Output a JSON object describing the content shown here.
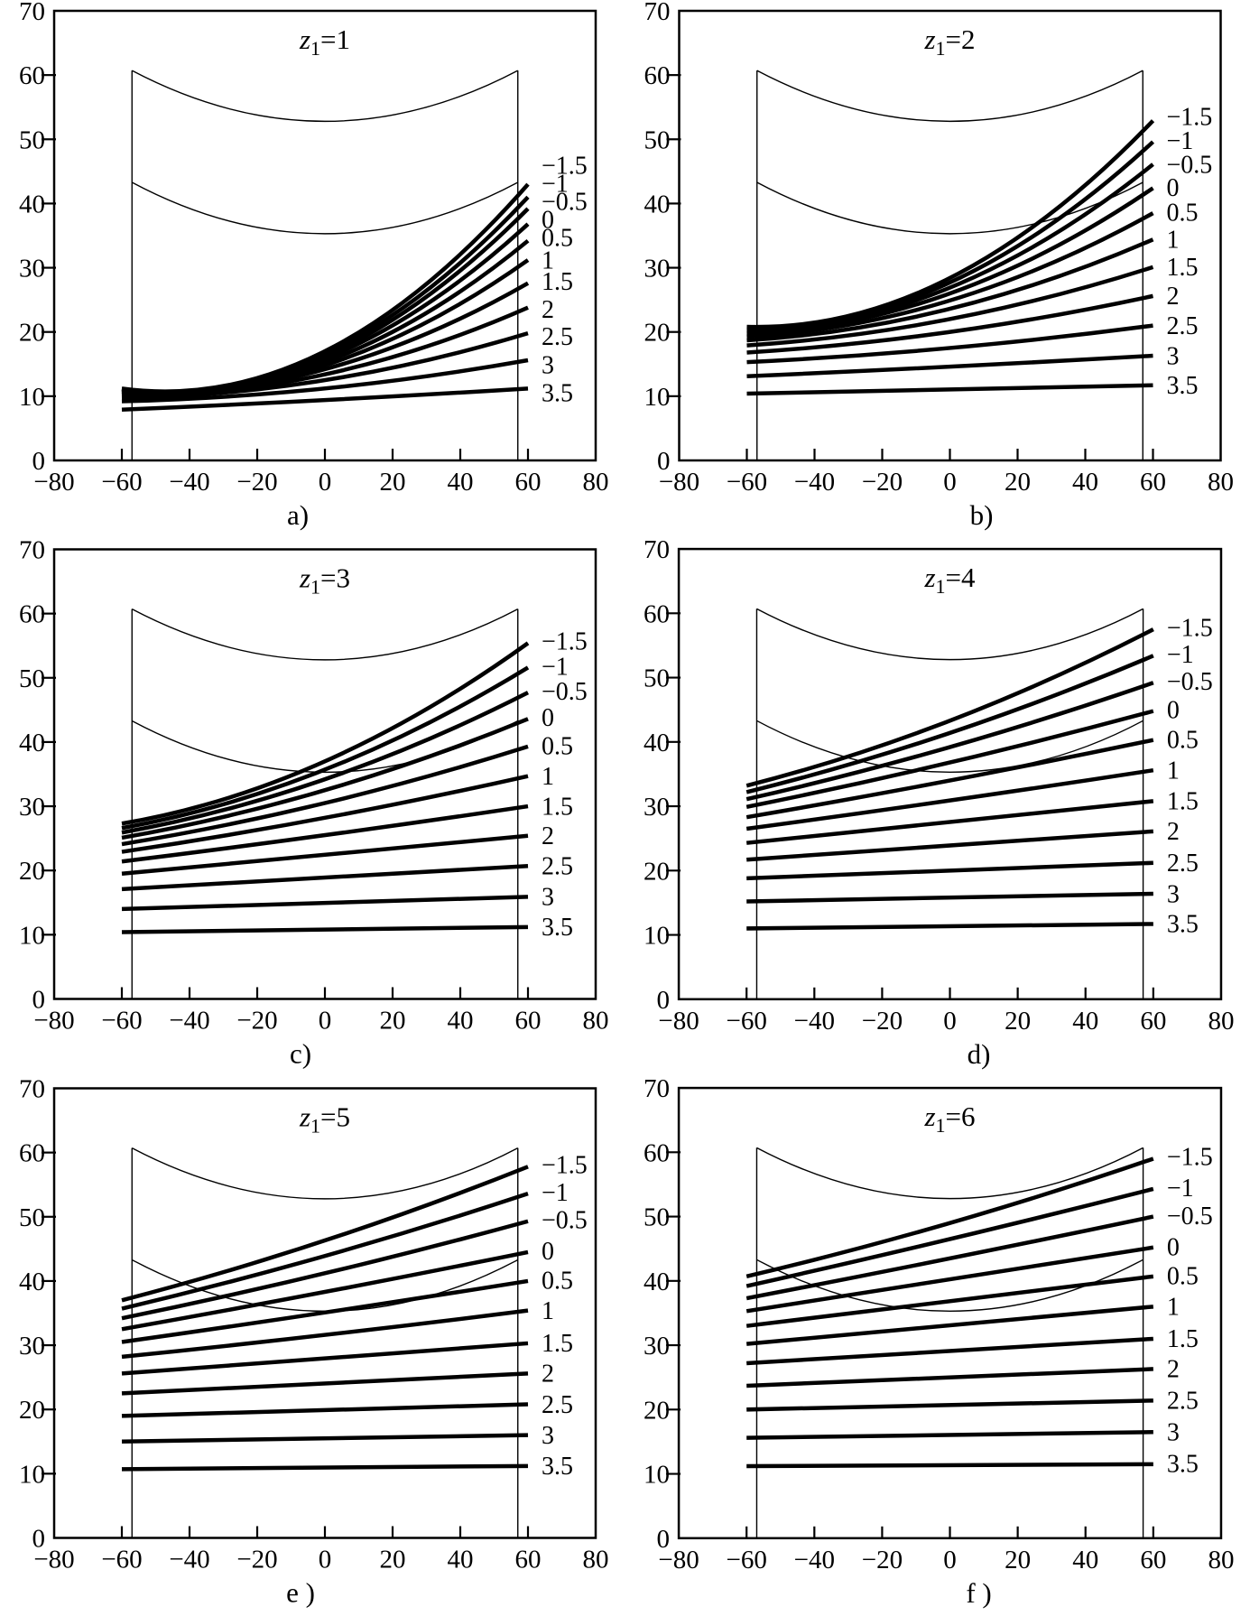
{
  "figure": {
    "background_color": "#ffffff",
    "ink_color": "#000000",
    "x_axis": {
      "min": -80,
      "max": 80,
      "tick_step": 20,
      "tick_values": [
        -80,
        -60,
        -40,
        -20,
        0,
        20,
        40,
        60,
        80
      ],
      "tick_labels": [
        "−80",
        "−60",
        "−40",
        "−20",
        "0",
        "20",
        "40",
        "60",
        "80"
      ]
    },
    "y_axis": {
      "min": 0,
      "max": 70,
      "tick_step": 10,
      "tick_values": [
        0,
        10,
        20,
        30,
        40,
        50,
        60,
        70
      ],
      "tick_labels": [
        "0",
        "10",
        "20",
        "30",
        "40",
        "50",
        "60",
        "70"
      ]
    },
    "series_x_points": [
      -60,
      0,
      60
    ],
    "envelope": {
      "x_start": -57,
      "x_end": 57,
      "upper": {
        "end_value": 60.7,
        "mid_value": 52.8
      },
      "lower": {
        "end_value": 43.3,
        "mid_value": 35.3
      },
      "vertical_lines_x": [
        -57,
        57
      ]
    }
  },
  "chart_data": [
    {
      "type": "line",
      "panel_letter": "a)",
      "title": {
        "symbol": "z",
        "subscript": "1",
        "equals": "=",
        "value": "1"
      },
      "xlim": [
        -80,
        80
      ],
      "ylim": [
        0,
        70
      ],
      "grid": false,
      "legend_position": "right-inside",
      "series": [
        {
          "label": "−1.5",
          "start": 11.2,
          "mid": 17.0,
          "end": 43.0,
          "label_y": 46.0
        },
        {
          "label": "−1",
          "start": 11.1,
          "mid": 16.6,
          "end": 41.0,
          "label_y": 43.2
        },
        {
          "label": "−0.5",
          "start": 11.0,
          "mid": 16.2,
          "end": 39.2,
          "label_y": 40.4
        },
        {
          "label": "0",
          "start": 10.8,
          "mid": 15.8,
          "end": 36.8,
          "label_y": 37.6
        },
        {
          "label": "0.5",
          "start": 10.7,
          "mid": 15.3,
          "end": 34.2,
          "label_y": 34.8
        },
        {
          "label": "1",
          "start": 10.5,
          "mid": 14.8,
          "end": 31.2,
          "label_y": 31.3
        },
        {
          "label": "1.5",
          "start": 10.3,
          "mid": 14.2,
          "end": 27.6,
          "label_y": 28.0
        },
        {
          "label": "2",
          "start": 10.0,
          "mid": 13.4,
          "end": 23.8,
          "label_y": 23.6
        },
        {
          "label": "2.5",
          "start": 9.7,
          "mid": 12.5,
          "end": 19.8,
          "label_y": 19.4
        },
        {
          "label": "3",
          "start": 9.2,
          "mid": 11.2,
          "end": 15.6,
          "label_y": 15.0
        },
        {
          "label": "3.5",
          "start": 7.9,
          "mid": 9.4,
          "end": 11.2,
          "label_y": 10.6
        }
      ]
    },
    {
      "type": "line",
      "panel_letter": "b)",
      "title": {
        "symbol": "z",
        "subscript": "1",
        "equals": "=",
        "value": "2"
      },
      "xlim": [
        -80,
        80
      ],
      "ylim": [
        0,
        70
      ],
      "grid": false,
      "legend_position": "right-inside",
      "series": [
        {
          "label": "−1.5",
          "start": 20.8,
          "mid": 28.4,
          "end": 52.9,
          "label_y": 53.6
        },
        {
          "label": "−1",
          "start": 20.5,
          "mid": 27.7,
          "end": 49.6,
          "label_y": 49.9
        },
        {
          "label": "−0.5",
          "start": 20.2,
          "mid": 26.9,
          "end": 46.1,
          "label_y": 46.2
        },
        {
          "label": "0",
          "start": 19.8,
          "mid": 26.0,
          "end": 42.4,
          "label_y": 42.6
        },
        {
          "label": "0.5",
          "start": 19.3,
          "mid": 24.9,
          "end": 38.5,
          "label_y": 38.7
        },
        {
          "label": "1",
          "start": 18.7,
          "mid": 23.6,
          "end": 34.4,
          "label_y": 34.5
        },
        {
          "label": "1.5",
          "start": 17.9,
          "mid": 22.0,
          "end": 30.1,
          "label_y": 30.2
        },
        {
          "label": "2",
          "start": 16.8,
          "mid": 20.0,
          "end": 25.6,
          "label_y": 25.7
        },
        {
          "label": "2.5",
          "start": 15.3,
          "mid": 17.5,
          "end": 21.0,
          "label_y": 21.1
        },
        {
          "label": "3",
          "start": 13.1,
          "mid": 14.6,
          "end": 16.3,
          "label_y": 16.4
        },
        {
          "label": "3.5",
          "start": 10.4,
          "mid": 11.0,
          "end": 11.7,
          "label_y": 11.8
        }
      ]
    },
    {
      "type": "line",
      "panel_letter": "c)",
      "title": {
        "symbol": "z",
        "subscript": "1",
        "equals": "=",
        "value": "3"
      },
      "xlim": [
        -80,
        80
      ],
      "ylim": [
        0,
        70
      ],
      "grid": false,
      "legend_position": "right-inside",
      "series": [
        {
          "label": "−1.5",
          "start": 27.3,
          "mid": 37.0,
          "end": 55.4,
          "label_y": 55.8
        },
        {
          "label": "−1",
          "start": 26.6,
          "mid": 35.7,
          "end": 51.6,
          "label_y": 51.9
        },
        {
          "label": "−0.5",
          "start": 25.9,
          "mid": 34.2,
          "end": 47.7,
          "label_y": 48.0
        },
        {
          "label": "0",
          "start": 25.1,
          "mid": 32.5,
          "end": 43.6,
          "label_y": 43.9
        },
        {
          "label": "0.5",
          "start": 24.1,
          "mid": 30.5,
          "end": 39.3,
          "label_y": 39.5
        },
        {
          "label": "1",
          "start": 22.9,
          "mid": 28.2,
          "end": 34.7,
          "label_y": 34.8
        },
        {
          "label": "1.5",
          "start": 21.4,
          "mid": 25.5,
          "end": 30.0,
          "label_y": 30.1
        },
        {
          "label": "2",
          "start": 19.5,
          "mid": 22.4,
          "end": 25.4,
          "label_y": 25.5
        },
        {
          "label": "2.5",
          "start": 17.1,
          "mid": 18.9,
          "end": 20.7,
          "label_y": 20.8
        },
        {
          "label": "3",
          "start": 14.0,
          "mid": 15.0,
          "end": 15.9,
          "label_y": 16.0
        },
        {
          "label": "3.5",
          "start": 10.4,
          "mid": 10.8,
          "end": 11.2,
          "label_y": 11.3
        }
      ]
    },
    {
      "type": "line",
      "panel_letter": "d)",
      "title": {
        "symbol": "z",
        "subscript": "1",
        "equals": "=",
        "value": "4"
      },
      "xlim": [
        -80,
        80
      ],
      "ylim": [
        0,
        70
      ],
      "grid": false,
      "legend_position": "right-inside",
      "series": [
        {
          "label": "−1.5",
          "start": 33.2,
          "mid": 43.3,
          "end": 57.5,
          "label_y": 57.9
        },
        {
          "label": "−1",
          "start": 32.2,
          "mid": 41.4,
          "end": 53.4,
          "label_y": 53.7
        },
        {
          "label": "−0.5",
          "start": 31.1,
          "mid": 39.2,
          "end": 49.2,
          "label_y": 49.5
        },
        {
          "label": "0",
          "start": 29.9,
          "mid": 36.8,
          "end": 44.8,
          "label_y": 45.1
        },
        {
          "label": "0.5",
          "start": 28.3,
          "mid": 34.0,
          "end": 40.3,
          "label_y": 40.5
        },
        {
          "label": "1",
          "start": 26.5,
          "mid": 30.9,
          "end": 35.6,
          "label_y": 35.7
        },
        {
          "label": "1.5",
          "start": 24.3,
          "mid": 27.5,
          "end": 30.8,
          "label_y": 30.9
        },
        {
          "label": "2",
          "start": 21.7,
          "mid": 23.9,
          "end": 26.1,
          "label_y": 26.2
        },
        {
          "label": "2.5",
          "start": 18.8,
          "mid": 20.0,
          "end": 21.2,
          "label_y": 21.3
        },
        {
          "label": "3",
          "start": 15.2,
          "mid": 15.8,
          "end": 16.4,
          "label_y": 16.5
        },
        {
          "label": "3.5",
          "start": 11.0,
          "mid": 11.3,
          "end": 11.7,
          "label_y": 11.8
        }
      ]
    },
    {
      "type": "line",
      "panel_letter": "e )",
      "title": {
        "symbol": "z",
        "subscript": "1",
        "equals": "=",
        "value": "5"
      },
      "xlim": [
        -80,
        80
      ],
      "ylim": [
        0,
        70
      ],
      "grid": false,
      "legend_position": "right-inside",
      "series": [
        {
          "label": "−1.5",
          "start": 37.0,
          "mid": 46.3,
          "end": 57.8,
          "label_y": 58.2
        },
        {
          "label": "−1",
          "start": 35.7,
          "mid": 43.9,
          "end": 53.6,
          "label_y": 53.9
        },
        {
          "label": "−0.5",
          "start": 34.2,
          "mid": 41.2,
          "end": 49.3,
          "label_y": 49.6
        },
        {
          "label": "0",
          "start": 32.5,
          "mid": 38.3,
          "end": 44.5,
          "label_y": 44.8
        },
        {
          "label": "0.5",
          "start": 30.5,
          "mid": 35.1,
          "end": 40.0,
          "label_y": 40.2
        },
        {
          "label": "1",
          "start": 28.2,
          "mid": 31.6,
          "end": 35.4,
          "label_y": 35.5
        },
        {
          "label": "1.5",
          "start": 25.6,
          "mid": 27.9,
          "end": 30.3,
          "label_y": 30.4
        },
        {
          "label": "2",
          "start": 22.5,
          "mid": 24.0,
          "end": 25.6,
          "label_y": 25.7
        },
        {
          "label": "2.5",
          "start": 19.0,
          "mid": 19.9,
          "end": 20.8,
          "label_y": 20.9
        },
        {
          "label": "3",
          "start": 15.0,
          "mid": 15.5,
          "end": 16.0,
          "label_y": 16.1
        },
        {
          "label": "3.5",
          "start": 10.7,
          "mid": 11.0,
          "end": 11.2,
          "label_y": 11.3
        }
      ]
    },
    {
      "type": "line",
      "panel_letter": "f )",
      "title": {
        "symbol": "z",
        "subscript": "1",
        "equals": "=",
        "value": "6"
      },
      "xlim": [
        -80,
        80
      ],
      "ylim": [
        0,
        70
      ],
      "grid": false,
      "legend_position": "right-inside",
      "series": [
        {
          "label": "−1.5",
          "start": 40.7,
          "mid": 49.0,
          "end": 59.0,
          "label_y": 59.4
        },
        {
          "label": "−1",
          "start": 39.2,
          "mid": 46.5,
          "end": 54.3,
          "label_y": 54.6
        },
        {
          "label": "−0.5",
          "start": 37.3,
          "mid": 43.5,
          "end": 50.0,
          "label_y": 50.2
        },
        {
          "label": "0",
          "start": 35.3,
          "mid": 40.2,
          "end": 45.2,
          "label_y": 45.4
        },
        {
          "label": "0.5",
          "start": 33.0,
          "mid": 36.8,
          "end": 40.7,
          "label_y": 40.9
        },
        {
          "label": "1",
          "start": 30.2,
          "mid": 33.1,
          "end": 36.0,
          "label_y": 36.1
        },
        {
          "label": "1.5",
          "start": 27.2,
          "mid": 29.1,
          "end": 31.0,
          "label_y": 31.1
        },
        {
          "label": "2",
          "start": 23.7,
          "mid": 25.0,
          "end": 26.3,
          "label_y": 26.4
        },
        {
          "label": "2.5",
          "start": 20.0,
          "mid": 20.7,
          "end": 21.4,
          "label_y": 21.5
        },
        {
          "label": "3",
          "start": 15.6,
          "mid": 16.0,
          "end": 16.5,
          "label_y": 16.6
        },
        {
          "label": "3.5",
          "start": 11.2,
          "mid": 11.4,
          "end": 11.5,
          "label_y": 11.7
        }
      ]
    }
  ]
}
